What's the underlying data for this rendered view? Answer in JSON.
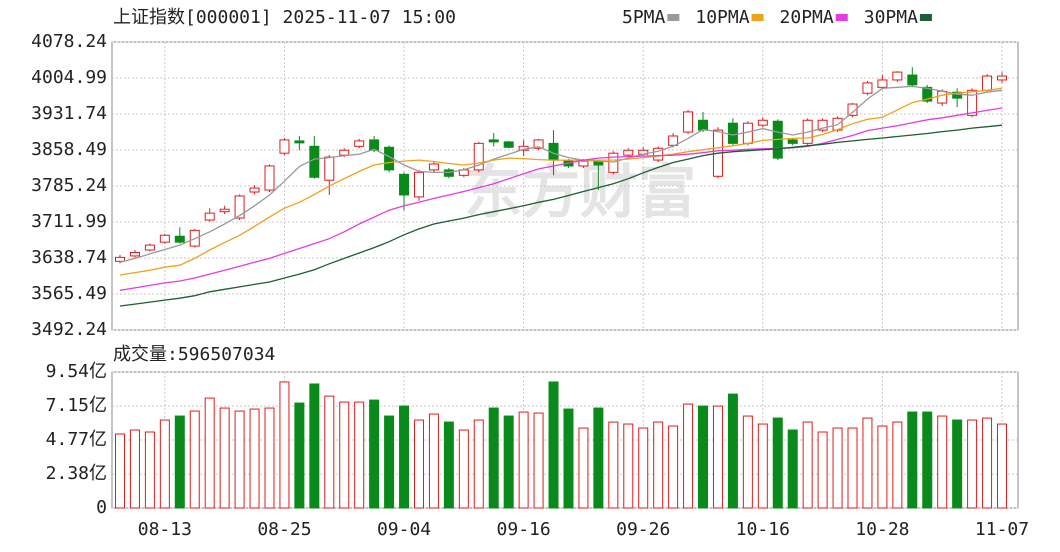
{
  "chart_data": [
    {
      "type": "candlestick",
      "title": "上证指数[000001] 2025-11-07 15:00",
      "watermark": "东方财富",
      "up_color": "#e31b1b",
      "down_color": "#0a8a1a",
      "grid": true,
      "ylim": [
        3492.24,
        4078.24
      ],
      "yticks": [
        3492.24,
        3565.49,
        3638.74,
        3711.99,
        3785.24,
        3858.49,
        3931.74,
        4004.99,
        4078.24
      ],
      "open": [
        3632,
        3643,
        3655,
        3671,
        3683,
        3663,
        3716,
        3733,
        3720,
        3773,
        3777,
        3852,
        3877,
        3866,
        3797,
        3848,
        3866,
        3879,
        3864,
        3809,
        3763,
        3818,
        3818,
        3807,
        3818,
        3879,
        3875,
        3858,
        3862,
        3872,
        3836,
        3826,
        3834,
        3813,
        3848,
        3850,
        3838,
        3868,
        3895,
        3919,
        3805,
        3913,
        3872,
        3909,
        3917,
        3879,
        3872,
        3899,
        3899,
        3929,
        3974,
        3986,
        4001,
        4011,
        3986,
        3954,
        3976,
        3929,
        3980,
        4001
      ],
      "close": [
        3640,
        3650,
        3665,
        3685,
        3671,
        3695,
        3730,
        3738,
        3765,
        3781,
        3826,
        3879,
        3873,
        3803,
        3844,
        3858,
        3877,
        3858,
        3818,
        3767,
        3813,
        3830,
        3805,
        3818,
        3872,
        3875,
        3864,
        3866,
        3879,
        3838,
        3826,
        3836,
        3828,
        3852,
        3858,
        3858,
        3862,
        3887,
        3936,
        3899,
        3899,
        3872,
        3913,
        3919,
        3842,
        3872,
        3919,
        3919,
        3923,
        3952,
        3995,
        4001,
        4017,
        3991,
        3958,
        3978,
        3964,
        3980,
        4009,
        4009
      ],
      "high": [
        3645,
        3655,
        3668,
        3688,
        3701,
        3698,
        3740,
        3745,
        3768,
        3787,
        3829,
        3883,
        3887,
        3887,
        3848,
        3862,
        3881,
        3887,
        3868,
        3813,
        3818,
        3834,
        3822,
        3822,
        3875,
        3893,
        3877,
        3879,
        3881,
        3899,
        3840,
        3840,
        3838,
        3856,
        3862,
        3864,
        3866,
        3893,
        3940,
        3936,
        3905,
        3923,
        3917,
        3925,
        3921,
        3883,
        3923,
        3923,
        3927,
        3954,
        3999,
        4011,
        4019,
        4027,
        3991,
        3982,
        3984,
        3984,
        4013,
        4017
      ],
      "low": [
        3628,
        3640,
        3652,
        3668,
        3668,
        3660,
        3713,
        3728,
        3716,
        3768,
        3773,
        3848,
        3858,
        3800,
        3767,
        3844,
        3862,
        3854,
        3813,
        3736,
        3755,
        3813,
        3801,
        3803,
        3813,
        3866,
        3862,
        3846,
        3858,
        3807,
        3822,
        3822,
        3777,
        3809,
        3844,
        3846,
        3834,
        3864,
        3891,
        3895,
        3801,
        3868,
        3868,
        3905,
        3838,
        3868,
        3868,
        3895,
        3895,
        3925,
        3970,
        3982,
        3997,
        3986,
        3954,
        3948,
        3946,
        3925,
        3976,
        3995
      ],
      "series": [
        {
          "name": "5PMA",
          "color": "#9a9a9a",
          "values": [
            3630,
            3638,
            3647,
            3656,
            3665,
            3678,
            3692,
            3708,
            3725,
            3745,
            3767,
            3795,
            3825,
            3840,
            3843,
            3847,
            3850,
            3860,
            3845,
            3828,
            3815,
            3813,
            3813,
            3818,
            3828,
            3840,
            3850,
            3860,
            3865,
            3852,
            3843,
            3838,
            3836,
            3834,
            3842,
            3850,
            3856,
            3866,
            3882,
            3900,
            3896,
            3889,
            3895,
            3902,
            3895,
            3889,
            3895,
            3903,
            3910,
            3935,
            3962,
            3984,
            3986,
            3988,
            3984,
            3978,
            3972,
            3970,
            3976,
            3980
          ]
        },
        {
          "name": "10PMA",
          "color": "#efa21a",
          "values": [
            3604,
            3609,
            3614,
            3620,
            3624,
            3638,
            3655,
            3670,
            3685,
            3703,
            3722,
            3740,
            3752,
            3768,
            3785,
            3800,
            3815,
            3828,
            3833,
            3836,
            3838,
            3835,
            3831,
            3828,
            3832,
            3838,
            3842,
            3841,
            3839,
            3838,
            3838,
            3838,
            3838,
            3838,
            3840,
            3843,
            3846,
            3850,
            3855,
            3859,
            3863,
            3867,
            3872,
            3878,
            3880,
            3882,
            3883,
            3890,
            3900,
            3912,
            3921,
            3925,
            3940,
            3955,
            3962,
            3970,
            3974,
            3977,
            3980,
            3984
          ]
        },
        {
          "name": "20PMA",
          "color": "#e43ce4",
          "values": [
            3573,
            3578,
            3583,
            3588,
            3592,
            3598,
            3606,
            3614,
            3622,
            3630,
            3638,
            3648,
            3658,
            3668,
            3678,
            3692,
            3708,
            3722,
            3736,
            3745,
            3752,
            3760,
            3767,
            3774,
            3782,
            3790,
            3800,
            3810,
            3820,
            3826,
            3832,
            3838,
            3842,
            3844,
            3845,
            3846,
            3847,
            3848,
            3850,
            3853,
            3857,
            3858,
            3860,
            3861,
            3862,
            3863,
            3866,
            3872,
            3880,
            3888,
            3898,
            3903,
            3908,
            3914,
            3920,
            3924,
            3929,
            3934,
            3939,
            3944
          ]
        },
        {
          "name": "30PMA",
          "color": "#1d5e32",
          "values": [
            3541,
            3545,
            3549,
            3553,
            3557,
            3562,
            3570,
            3575,
            3580,
            3585,
            3590,
            3598,
            3606,
            3615,
            3627,
            3638,
            3649,
            3660,
            3672,
            3686,
            3698,
            3708,
            3714,
            3720,
            3727,
            3733,
            3739,
            3745,
            3752,
            3758,
            3766,
            3774,
            3782,
            3790,
            3800,
            3812,
            3823,
            3833,
            3840,
            3847,
            3852,
            3855,
            3857,
            3859,
            3861,
            3864,
            3867,
            3870,
            3874,
            3877,
            3880,
            3883,
            3886,
            3889,
            3892,
            3896,
            3899,
            3903,
            3906,
            3909
          ]
        }
      ]
    },
    {
      "type": "bar",
      "title": "成交量:596507034",
      "grid": true,
      "ylim": [
        0,
        9.54
      ],
      "yticks": [
        0,
        {
          "value": 2.38,
          "label": "2.38亿"
        },
        {
          "value": 4.77,
          "label": "4.77亿"
        },
        {
          "value": 7.15,
          "label": "7.15亿"
        },
        {
          "value": 9.54,
          "label": "9.54亿"
        }
      ],
      "categories": [
        null,
        null,
        null,
        "08-13",
        null,
        null,
        null,
        null,
        null,
        null,
        null,
        "08-25",
        null,
        null,
        null,
        null,
        null,
        null,
        null,
        "09-04",
        null,
        null,
        null,
        null,
        null,
        null,
        null,
        "09-16",
        null,
        null,
        null,
        null,
        null,
        null,
        null,
        "09-26",
        null,
        null,
        null,
        null,
        null,
        null,
        null,
        "10-16",
        null,
        null,
        null,
        null,
        null,
        null,
        null,
        "10-28",
        null,
        null,
        null,
        null,
        null,
        null,
        null,
        "11-07"
      ],
      "values": [
        5.19,
        5.47,
        5.33,
        6.17,
        6.45,
        6.8,
        7.71,
        7.01,
        6.8,
        6.94,
        7.01,
        8.84,
        7.36,
        8.7,
        7.85,
        7.43,
        7.43,
        7.57,
        6.45,
        7.15,
        6.17,
        6.59,
        6.03,
        5.47,
        6.17,
        7.01,
        6.45,
        6.73,
        6.66,
        8.84,
        6.94,
        5.61,
        7.01,
        6.03,
        5.89,
        5.61,
        6.03,
        5.75,
        7.29,
        7.15,
        7.15,
        7.99,
        6.45,
        5.89,
        6.31,
        5.47,
        6.03,
        5.33,
        5.61,
        5.61,
        6.31,
        5.75,
        6.03,
        6.73,
        6.73,
        6.45,
        6.17,
        6.17,
        6.31,
        5.89
      ]
    }
  ]
}
